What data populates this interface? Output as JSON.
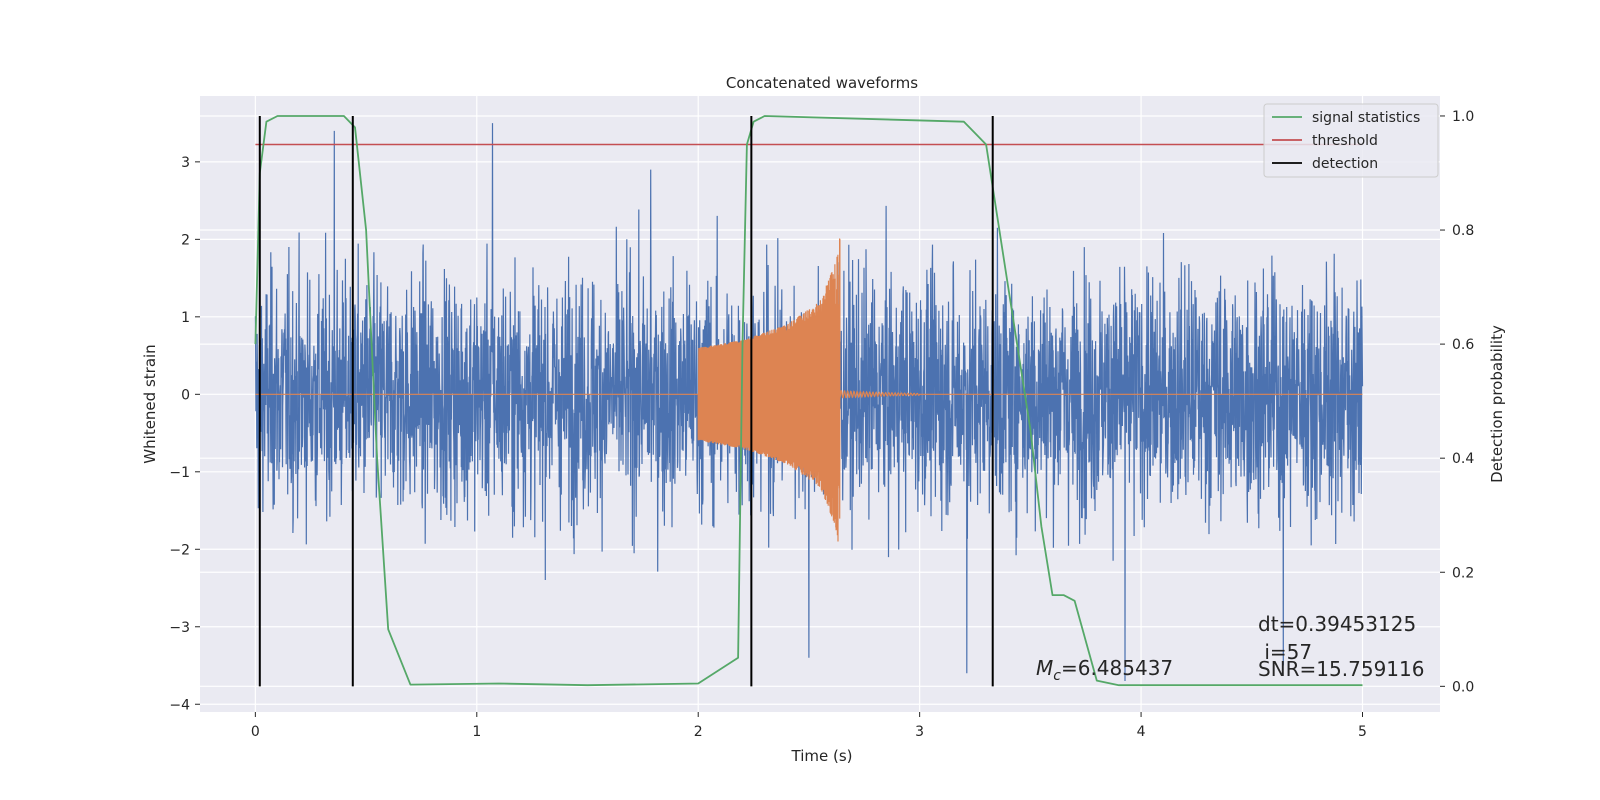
{
  "chart_data": {
    "type": "line",
    "title": "Concatenated waveforms",
    "xlabel": "Time (s)",
    "ylabel": "Whitened strain",
    "y2label": "Detection probability",
    "xlim": [
      -0.25,
      5.35
    ],
    "ylim": [
      -4.1,
      3.85
    ],
    "y2lim": [
      -0.045,
      1.035
    ],
    "x_ticks": [
      0,
      1,
      2,
      3,
      4,
      5
    ],
    "y_ticks": [
      -4,
      -3,
      -2,
      -1,
      0,
      1,
      2,
      3
    ],
    "y2_ticks": [
      0.0,
      0.2,
      0.4,
      0.6,
      0.8,
      1.0
    ],
    "grid": true,
    "legend_position": "top-right",
    "legend": [
      "signal statistics",
      "threshold",
      "detection"
    ],
    "series": [
      {
        "name": "whitened strain",
        "color": "#4c72b0",
        "axis": "left",
        "x_range": [
          0,
          5
        ],
        "typical_amplitude": 1.5,
        "peak_values": [
          3.4,
          3.5,
          2.9,
          -3.4,
          -3.6,
          -3.7,
          -3.5
        ]
      },
      {
        "name": "injected waveform",
        "color": "#dd8452",
        "axis": "left",
        "chirp_start": 2.0,
        "chirp_peak": 2.64,
        "x": [
          2.0,
          2.2,
          2.4,
          2.55,
          2.62,
          2.64,
          2.65
        ],
        "envelope": [
          0.6,
          0.7,
          0.9,
          1.2,
          1.7,
          2.1,
          0.05
        ]
      },
      {
        "name": "signal statistics",
        "color": "#55a868",
        "axis": "right",
        "x": [
          0,
          0.02,
          0.05,
          0.1,
          0.4,
          0.45,
          0.5,
          0.55,
          0.6,
          0.7,
          1.1,
          1.5,
          2.0,
          2.18,
          2.2,
          2.22,
          2.25,
          2.3,
          3.2,
          3.3,
          3.4,
          3.5,
          3.55,
          3.6,
          3.65,
          3.7,
          3.75,
          3.8,
          3.9,
          5.0
        ],
        "values": [
          0.6,
          0.9,
          0.99,
          1.0,
          1.0,
          0.98,
          0.8,
          0.4,
          0.1,
          0.003,
          0.005,
          0.002,
          0.005,
          0.05,
          0.6,
          0.95,
          0.99,
          1.0,
          0.99,
          0.95,
          0.7,
          0.45,
          0.28,
          0.16,
          0.16,
          0.15,
          0.08,
          0.01,
          0.002,
          0.002
        ]
      },
      {
        "name": "threshold",
        "color": "#c44e52",
        "axis": "right",
        "x": [
          0,
          5
        ],
        "values": [
          0.95,
          0.95
        ]
      }
    ],
    "detections": {
      "color": "#000000",
      "x": [
        0.02,
        0.44,
        2.24,
        3.33
      ]
    },
    "annotations": {
      "mc": "=6.485437",
      "dt": "dt=0.39453125",
      "i": " i=57",
      "snr": "SNR=15.759116"
    }
  }
}
